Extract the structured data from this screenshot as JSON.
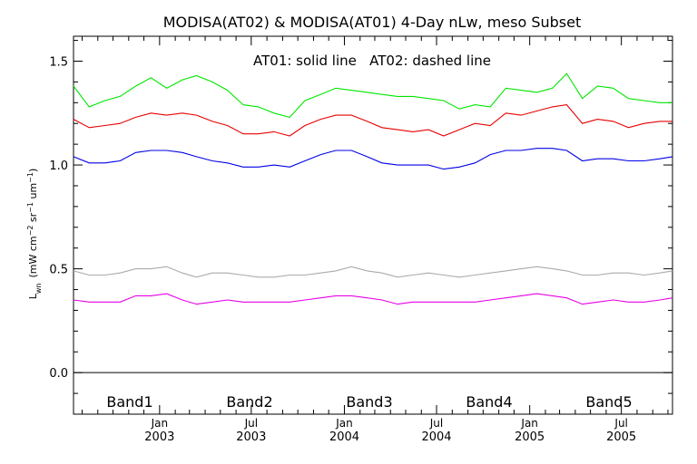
{
  "chart_data": {
    "type": "line",
    "title": "MODISA(AT02) & MODISA(AT01) 4-Day nLw, meso Subset",
    "annotation": "AT01: solid line   AT02: dashed line",
    "ylabel": {
      "base": "L",
      "sub": "wn",
      "units_prefix": "(mW cm",
      "exp1": "−2",
      "mid1": " sr",
      "exp2": "−1",
      "mid2": " um",
      "exp3": "−1",
      "close": ")"
    },
    "x_range": [
      "2002-07-15",
      "2005-10-10"
    ],
    "ylim": [
      -0.2,
      1.62
    ],
    "y_ticks": [
      {
        "value": 0.0,
        "label": "0.0"
      },
      {
        "value": 0.5,
        "label": "0.5"
      },
      {
        "value": 1.0,
        "label": "1.0"
      },
      {
        "value": 1.5,
        "label": "1.5"
      }
    ],
    "x_ticks": [
      {
        "date": "2003-01-01",
        "month": "Jan",
        "year": "2003"
      },
      {
        "date": "2003-07-01",
        "month": "Jul",
        "year": "2003"
      },
      {
        "date": "2004-01-01",
        "month": "Jan",
        "year": "2004"
      },
      {
        "date": "2004-07-01",
        "month": "Jul",
        "year": "2004"
      },
      {
        "date": "2005-01-01",
        "month": "Jan",
        "year": "2005"
      },
      {
        "date": "2005-07-01",
        "month": "Jul",
        "year": "2005"
      }
    ],
    "zero_line": 0.0,
    "x": [
      "2002-07-15",
      "2002-08-15",
      "2002-09-15",
      "2002-10-15",
      "2002-11-15",
      "2002-12-15",
      "2003-01-15",
      "2003-02-15",
      "2003-03-15",
      "2003-04-15",
      "2003-05-15",
      "2003-06-15",
      "2003-07-15",
      "2003-08-15",
      "2003-09-15",
      "2003-10-15",
      "2003-11-15",
      "2003-12-15",
      "2004-01-15",
      "2004-02-15",
      "2004-03-15",
      "2004-04-15",
      "2004-05-15",
      "2004-06-15",
      "2004-07-15",
      "2004-08-15",
      "2004-09-15",
      "2004-10-15",
      "2004-11-15",
      "2004-12-15",
      "2005-01-15",
      "2005-02-15",
      "2005-03-15",
      "2005-04-15",
      "2005-05-15",
      "2005-06-15",
      "2005-07-15",
      "2005-08-15",
      "2005-09-15",
      "2005-10-10"
    ],
    "series": [
      {
        "name": "Band1",
        "color": "#00e600",
        "values": [
          1.38,
          1.28,
          1.31,
          1.33,
          1.38,
          1.42,
          1.37,
          1.41,
          1.43,
          1.4,
          1.36,
          1.29,
          1.28,
          1.25,
          1.23,
          1.31,
          1.34,
          1.37,
          1.36,
          1.35,
          1.34,
          1.33,
          1.33,
          1.32,
          1.31,
          1.27,
          1.29,
          1.28,
          1.37,
          1.36,
          1.35,
          1.37,
          1.44,
          1.32,
          1.38,
          1.37,
          1.32,
          1.31,
          1.3,
          1.3
        ]
      },
      {
        "name": "Band2",
        "color": "#e60000",
        "values": [
          1.22,
          1.18,
          1.19,
          1.2,
          1.23,
          1.25,
          1.24,
          1.25,
          1.24,
          1.21,
          1.19,
          1.15,
          1.15,
          1.16,
          1.14,
          1.19,
          1.22,
          1.24,
          1.24,
          1.21,
          1.18,
          1.17,
          1.16,
          1.17,
          1.14,
          1.17,
          1.2,
          1.19,
          1.25,
          1.24,
          1.26,
          1.28,
          1.29,
          1.2,
          1.22,
          1.21,
          1.18,
          1.2,
          1.21,
          1.21
        ]
      },
      {
        "name": "Band3",
        "color": "#0000e6",
        "values": [
          1.04,
          1.01,
          1.01,
          1.02,
          1.06,
          1.07,
          1.07,
          1.06,
          1.04,
          1.02,
          1.01,
          0.99,
          0.99,
          1.0,
          0.99,
          1.02,
          1.05,
          1.07,
          1.07,
          1.04,
          1.01,
          1.0,
          1.0,
          1.0,
          0.98,
          0.99,
          1.01,
          1.05,
          1.07,
          1.07,
          1.08,
          1.08,
          1.07,
          1.02,
          1.03,
          1.03,
          1.02,
          1.02,
          1.03,
          1.04
        ]
      },
      {
        "name": "Band4",
        "color": "#aaaaaa",
        "values": [
          0.49,
          0.47,
          0.47,
          0.48,
          0.5,
          0.5,
          0.51,
          0.48,
          0.46,
          0.48,
          0.48,
          0.47,
          0.46,
          0.46,
          0.47,
          0.47,
          0.48,
          0.49,
          0.51,
          0.49,
          0.48,
          0.46,
          0.47,
          0.48,
          0.47,
          0.46,
          0.47,
          0.48,
          0.49,
          0.5,
          0.51,
          0.5,
          0.49,
          0.47,
          0.47,
          0.48,
          0.48,
          0.47,
          0.48,
          0.49
        ]
      },
      {
        "name": "Band5",
        "color": "#e600e6",
        "values": [
          0.35,
          0.34,
          0.34,
          0.34,
          0.37,
          0.37,
          0.38,
          0.35,
          0.33,
          0.34,
          0.35,
          0.34,
          0.34,
          0.34,
          0.34,
          0.35,
          0.36,
          0.37,
          0.37,
          0.36,
          0.35,
          0.33,
          0.34,
          0.34,
          0.34,
          0.34,
          0.34,
          0.35,
          0.36,
          0.37,
          0.38,
          0.37,
          0.36,
          0.33,
          0.34,
          0.35,
          0.34,
          0.34,
          0.35,
          0.36
        ]
      }
    ]
  }
}
